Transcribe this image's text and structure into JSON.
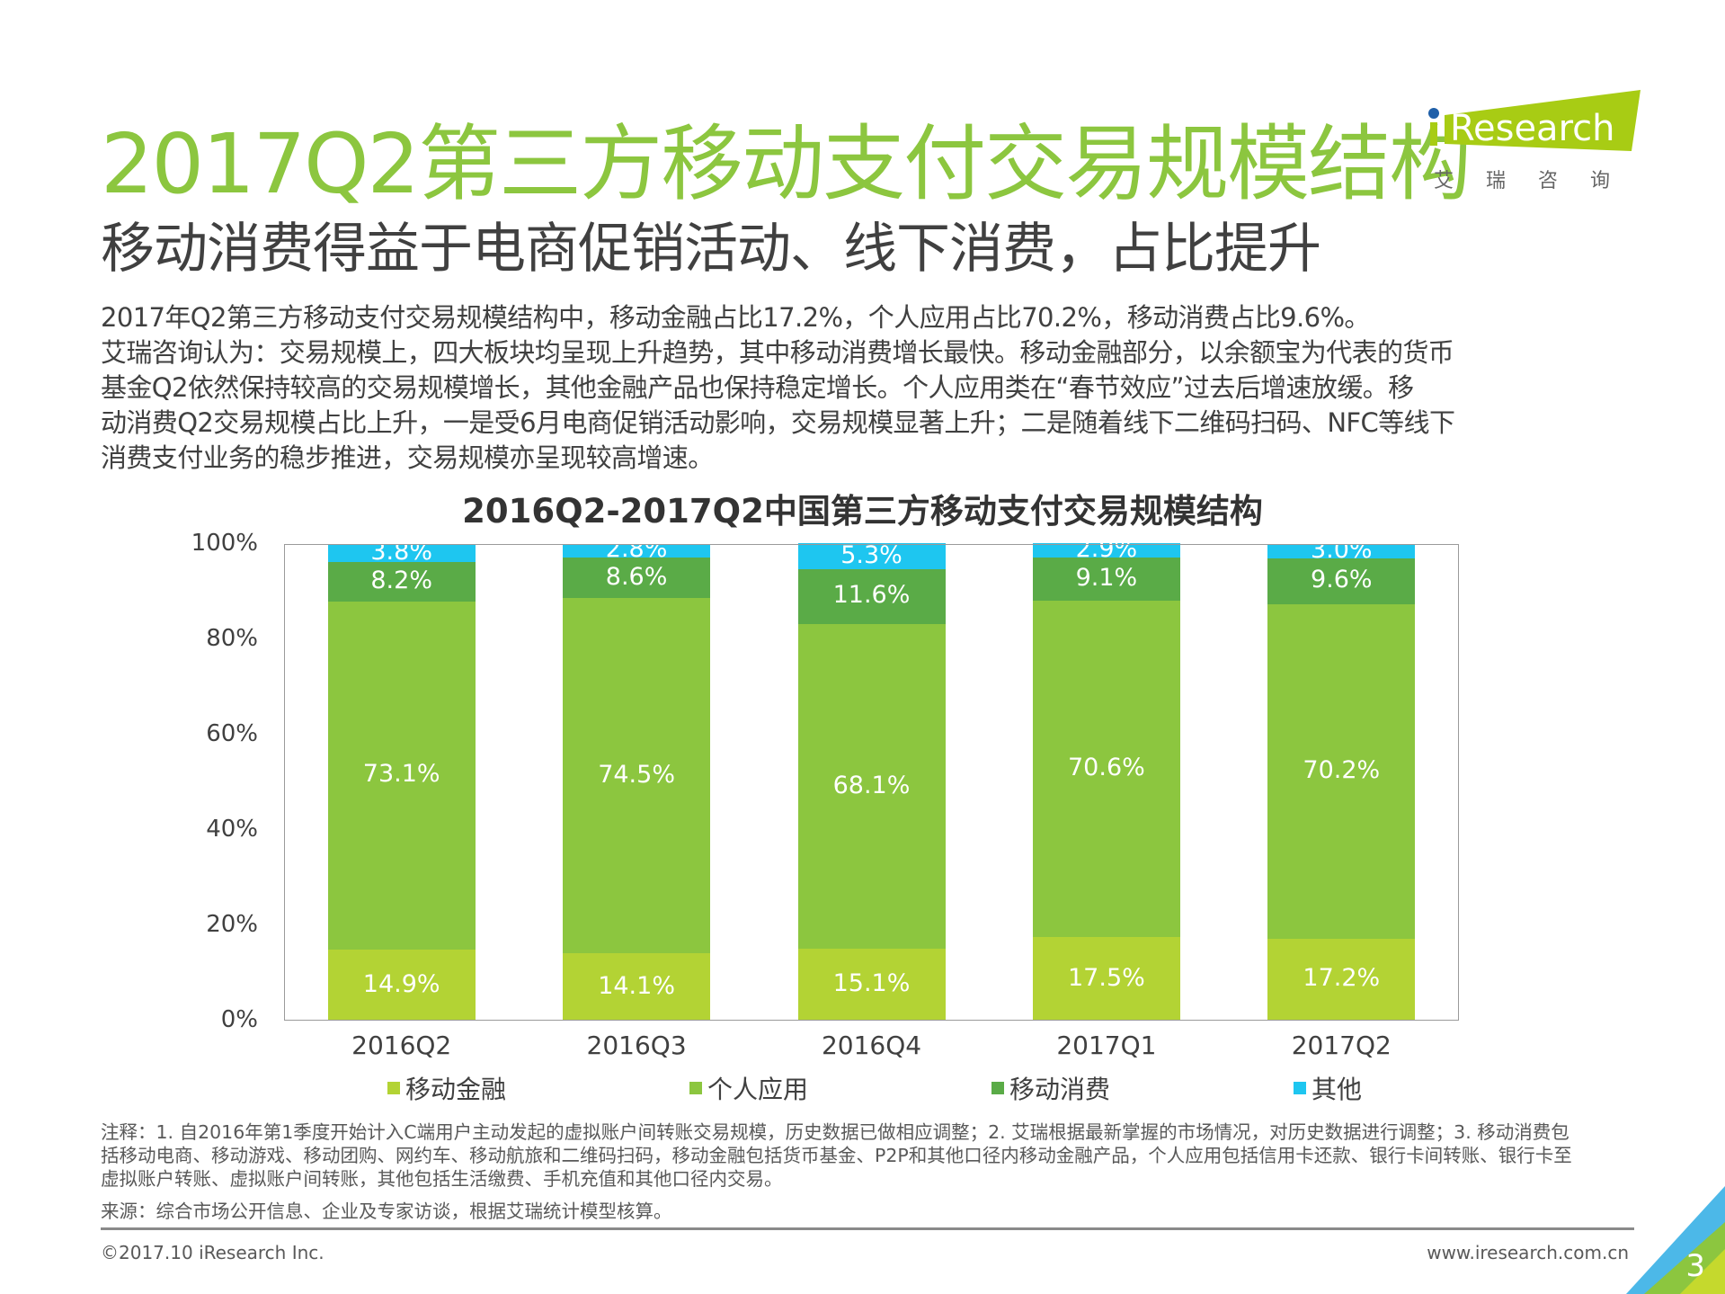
{
  "header": {
    "title": "2017Q2第三方移动支付交易规模结构",
    "subtitle": "移动消费得益于电商促销活动、线下消费，占比提升",
    "logo_text": "iResearch",
    "logo_cn": "艾 瑞 咨 询"
  },
  "paragraph": [
    "2017年Q2第三方移动支付交易规模结构中，移动金融占比17.2%，个人应用占比70.2%，移动消费占比9.6%。",
    "艾瑞咨询认为：交易规模上，四大板块均呈现上升趋势，其中移动消费增长最快。移动金融部分，以余额宝为代表的货币",
    "基金Q2依然保持较高的交易规模增长，其他金融产品也保持稳定增长。个人应用类在“春节效应”过去后增速放缓。移",
    "动消费Q2交易规模占比上升，一是受6月电商促销活动影响，交易规模显著上升；二是随着线下二维码扫码、NFC等线下",
    "消费支付业务的稳步推进，交易规模亦呈现较高增速。"
  ],
  "chart_data": {
    "type": "bar",
    "stacked": true,
    "title": "2016Q2-2017Q2中国第三方移动支付交易规模结构",
    "categories": [
      "2016Q2",
      "2016Q3",
      "2016Q4",
      "2017Q1",
      "2017Q2"
    ],
    "series": [
      {
        "name": "移动金融",
        "color": "#b3d334",
        "values": [
          14.9,
          14.1,
          15.1,
          17.5,
          17.2
        ]
      },
      {
        "name": "个人应用",
        "color": "#8cc63f",
        "values": [
          73.1,
          74.5,
          68.1,
          70.6,
          70.2
        ]
      },
      {
        "name": "移动消费",
        "color": "#5aab47",
        "values": [
          8.2,
          8.6,
          11.6,
          9.1,
          9.6
        ]
      },
      {
        "name": "其他",
        "color": "#1ec6f0",
        "values": [
          3.8,
          2.8,
          5.3,
          2.9,
          3.0
        ]
      }
    ],
    "ylim": [
      0,
      100
    ],
    "yticks": [
      "0%",
      "20%",
      "40%",
      "60%",
      "80%",
      "100%"
    ],
    "value_suffix": "%",
    "legend_position": "bottom",
    "grid": false
  },
  "notes": [
    "注释：1. 自2016年第1季度开始计入C端用户主动发起的虚拟账户间转账交易规模，历史数据已做相应调整；2. 艾瑞根据最新掌握的市场情况，对历史数据进行调整；3. 移动消费包",
    "括移动电商、移动游戏、移动团购、网约车、移动航旅和二维码扫码，移动金融包括货币基金、P2P和其他口径内移动金融产品，个人应用包括信用卡还款、银行卡间转账、银行卡至",
    "虚拟账户转账、虚拟账户间转账，其他包括生活缴费、手机充值和其他口径内交易。"
  ],
  "source": "来源：综合市场公开信息、企业及专家访谈，根据艾瑞统计模型核算。",
  "footer": {
    "copyright": "©2017.10 iResearch Inc.",
    "url": "www.iresearch.com.cn",
    "page": "3"
  }
}
